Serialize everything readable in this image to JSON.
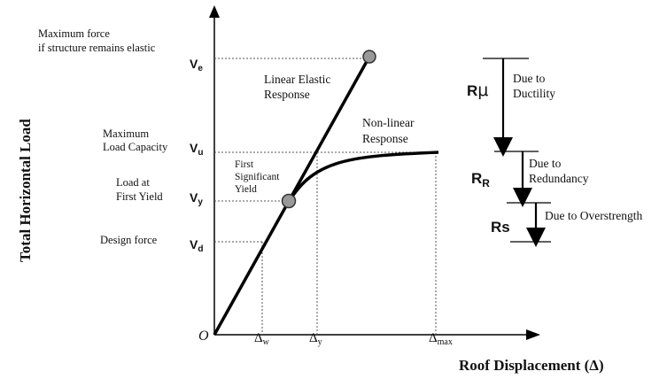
{
  "axes": {
    "y_title": "Total Horizontal Load",
    "x_title": "Roof Displacement (Δ)",
    "origin": "O"
  },
  "left_labels": {
    "max_force_line1": "Maximum force",
    "max_force_line2": "if structure remains elastic",
    "max_capacity_line1": "Maximum",
    "max_capacity_line2": "Load Capacity",
    "first_yield_line1": "Load at",
    "first_yield_line2": "First Yield",
    "design_force": "Design force"
  },
  "y_symbols": {
    "ve_main": "V",
    "ve_sub": "e",
    "vu_main": "V",
    "vu_sub": "u",
    "vy_main": "V",
    "vy_sub": "y",
    "vd_main": "V",
    "vd_sub": "d"
  },
  "x_symbols": {
    "dw_main": "Δ",
    "dw_sub": "w",
    "dy_main": "Δ",
    "dy_sub": "y",
    "dmax_main": "Δ",
    "dmax_sub": "max"
  },
  "curve_labels": {
    "linear_line1": "Linear Elastic",
    "linear_line2": "Response",
    "nonlinear_line1": "Non-linear",
    "nonlinear_line2": "Response",
    "first_sig_line1": "First",
    "first_sig_line2": "Significant",
    "first_sig_line3": "Yield"
  },
  "factors": {
    "r_mu_main": "R",
    "r_mu_sym": "μ",
    "r_mu_desc_line1": "Due to",
    "r_mu_desc_line2": "Ductility",
    "r_r_main": "R",
    "r_r_sub": "R",
    "r_r_desc_line1": "Due to",
    "r_r_desc_line2": "Redundancy",
    "r_s_main": "Rs",
    "r_s_desc": "Due to Overstrength"
  }
}
